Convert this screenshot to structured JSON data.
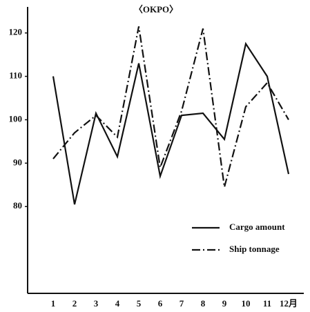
{
  "chart_data": {
    "type": "line",
    "title": "〈OKPO〉",
    "categories": [
      "1",
      "2",
      "3",
      "4",
      "5",
      "6",
      "7",
      "8",
      "9",
      "10",
      "11",
      "12月"
    ],
    "series": [
      {
        "name": "Cargo amount",
        "color": "#111111",
        "dash": "solid",
        "values": [
          110,
          80.5,
          101.5,
          91.5,
          113,
          87,
          101,
          101.5,
          95.5,
          117.5,
          110,
          87.5
        ]
      },
      {
        "name": "Ship tonnage",
        "color": "#111111",
        "dash": "dashdot",
        "values": [
          91,
          97,
          101,
          96,
          121.5,
          89,
          102,
          121,
          84.5,
          103,
          108.5,
          100
        ]
      }
    ],
    "ylim": [
      60,
      126
    ],
    "yticks": [
      80,
      90,
      100,
      110,
      120
    ],
    "legend": "lower right"
  }
}
